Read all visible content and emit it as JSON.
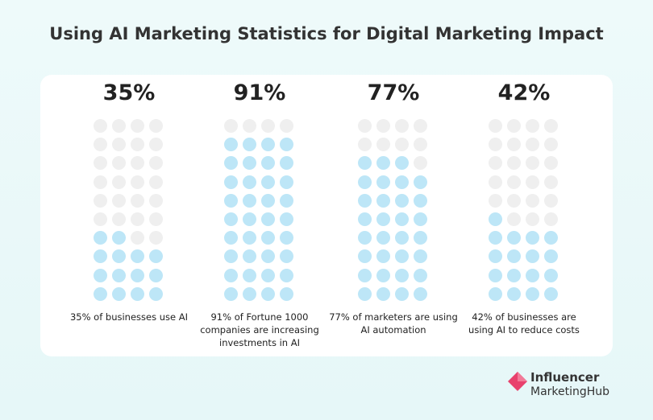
{
  "chart_data": {
    "type": "pictogram",
    "title": "Using AI Marketing Statistics for Digital Marketing Impact",
    "categories": [
      "35% of businesses use AI",
      "91% of Fortune 1000 companies are increasing investments in AI",
      "77% of marketers are using AI automation",
      "42% of businesses are using AI to reduce costs"
    ],
    "values": [
      35,
      91,
      77,
      42
    ],
    "value_labels": [
      "35%",
      "91%",
      "77%",
      "42%"
    ],
    "color": "#bde6f7",
    "empty_color": "#efefef"
  },
  "logo": {
    "line1": "Influencer",
    "line2": "MarketingHub"
  }
}
